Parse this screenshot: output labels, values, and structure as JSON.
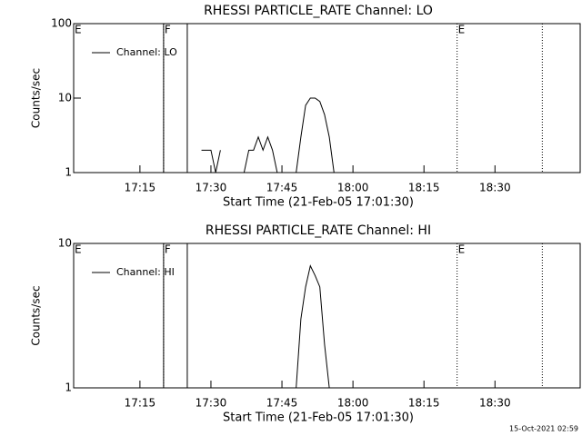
{
  "chart_data": [
    {
      "type": "line",
      "title": "RHESSI PARTICLE_RATE Channel: LO",
      "xlabel": "Start Time (21-Feb-05 17:01:30)",
      "ylabel": "Counts/sec",
      "x": [
        "17:26",
        "17:27",
        "17:28",
        "17:29",
        "17:30",
        "17:31",
        "17:32",
        "17:33",
        "17:37",
        "17:38",
        "17:39",
        "17:40",
        "17:41",
        "17:42",
        "17:43",
        "17:44",
        "17:48",
        "17:49",
        "17:50",
        "17:51",
        "17:52",
        "17:53",
        "17:54",
        "17:55",
        "17:56"
      ],
      "series": [
        {
          "name": "Channel: LO",
          "color": "#000000",
          "values": [
            2,
            null,
            2,
            2,
            2,
            1,
            2,
            null,
            1,
            2,
            2,
            3,
            2,
            3,
            2,
            1,
            1,
            3,
            8,
            10,
            10,
            9,
            6,
            3,
            1
          ]
        }
      ],
      "log_y": true,
      "ylim": [
        1,
        100
      ],
      "yticks": [
        1,
        10,
        100
      ],
      "xlim": [
        "17:01",
        "18:48"
      ],
      "xticks": [
        "17:15",
        "17:30",
        "17:45",
        "18:00",
        "18:15",
        "18:30"
      ],
      "legend": "upper left",
      "markers": [
        {
          "x": "17:01",
          "label": "E",
          "style": "dotted"
        },
        {
          "x": "17:20",
          "style": "dotted"
        },
        {
          "x": "17:20",
          "label": "F",
          "style": "solid"
        },
        {
          "x": "17:25",
          "style": "solid"
        },
        {
          "x": "18:22",
          "label": "E",
          "style": "dotted"
        },
        {
          "x": "18:40",
          "style": "dotted"
        }
      ]
    },
    {
      "type": "line",
      "title": "RHESSI PARTICLE_RATE Channel: HI",
      "xlabel": "Start Time (21-Feb-05 17:01:30)",
      "ylabel": "Counts/sec",
      "x": [
        "17:48",
        "17:49",
        "17:50",
        "17:51",
        "17:52",
        "17:53",
        "17:54",
        "17:55"
      ],
      "series": [
        {
          "name": "Channel: HI",
          "color": "#000000",
          "values": [
            1,
            3,
            5,
            7,
            6,
            5,
            2,
            1
          ]
        }
      ],
      "log_y": true,
      "ylim": [
        1,
        10
      ],
      "yticks": [
        1,
        10
      ],
      "xlim": [
        "17:01",
        "18:48"
      ],
      "xticks": [
        "17:15",
        "17:30",
        "17:45",
        "18:00",
        "18:15",
        "18:30"
      ],
      "legend": "upper left",
      "markers": [
        {
          "x": "17:01",
          "label": "E",
          "style": "dotted"
        },
        {
          "x": "17:20",
          "style": "dotted"
        },
        {
          "x": "17:20",
          "label": "F",
          "style": "solid"
        },
        {
          "x": "17:25",
          "style": "solid"
        },
        {
          "x": "18:22",
          "label": "E",
          "style": "dotted"
        },
        {
          "x": "18:40",
          "style": "dotted"
        }
      ]
    }
  ],
  "footer": "15-Oct-2021 02:59"
}
